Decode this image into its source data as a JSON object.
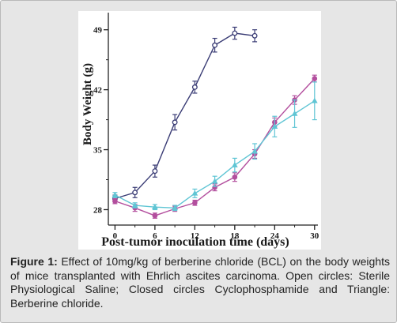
{
  "caption": {
    "label": "Figure 1:",
    "text": " Effect of 10mg/kg of berberine chloride (BCL) on the body weights of mice transplanted with Ehrlich ascites carcinoma. Open circles: Sterile Physiological Saline; Closed circles Cyclophosphamide and Triangle: Berberine chloride."
  },
  "colors": {
    "saline": "#3a3c75",
    "cyclophosphamide": "#b34f9e",
    "berberine": "#5fc5d4",
    "frame": "#e6e6e6"
  },
  "chart_data": {
    "type": "line",
    "title": "",
    "xlabel": "Post-tumor inoculation time (days)",
    "ylabel": "Body Weight (g)",
    "xlim": [
      -1,
      30.5
    ],
    "ylim": [
      26.2,
      51
    ],
    "xticks": [
      0,
      6,
      12,
      18,
      24,
      30
    ],
    "yticks": [
      28,
      35,
      42,
      49
    ],
    "grid": false,
    "legend": "none",
    "series": [
      {
        "key": "saline",
        "marker": "open-circle",
        "x": [
          0,
          3,
          6,
          9,
          12,
          15,
          18,
          21
        ],
        "y": [
          29.3,
          30.0,
          32.5,
          38.2,
          42.3,
          47.2,
          48.6,
          48.3
        ],
        "err": [
          0.4,
          0.6,
          0.7,
          0.9,
          0.7,
          0.8,
          0.7,
          0.7
        ]
      },
      {
        "key": "cyclophosphamide",
        "marker": "closed-circle",
        "x": [
          0,
          3,
          6,
          9,
          12,
          15,
          18,
          21,
          24,
          27,
          30
        ],
        "y": [
          29.0,
          28.2,
          27.3,
          28.1,
          28.8,
          30.6,
          31.8,
          34.5,
          38.2,
          40.8,
          43.3
        ],
        "err": [
          0.3,
          0.4,
          0.3,
          0.3,
          0.3,
          0.4,
          0.5,
          0.5,
          0.5,
          0.5,
          0.4
        ]
      },
      {
        "key": "berberine",
        "marker": "triangle",
        "x": [
          0,
          3,
          6,
          9,
          12,
          15,
          18,
          21,
          24,
          27,
          30
        ],
        "y": [
          29.7,
          28.5,
          28.3,
          28.2,
          29.9,
          31.3,
          33.2,
          34.8,
          37.7,
          39.2,
          40.7
        ],
        "err": [
          0.3,
          0.3,
          0.3,
          0.3,
          0.5,
          0.6,
          0.8,
          0.9,
          1.2,
          1.6,
          2.2
        ]
      }
    ]
  }
}
